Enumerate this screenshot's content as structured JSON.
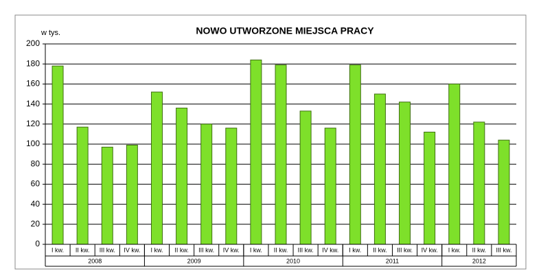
{
  "chart_data": {
    "type": "bar",
    "title": "NOWO UTWORZONE MIEJSCA PRACY",
    "y_label": "w tys.",
    "categories": [
      "I kw.",
      "II kw.",
      "III kw.",
      "IV kw.",
      "I kw.",
      "II kw.",
      "III kw.",
      "IV kw.",
      "I kw.",
      "II kw.",
      "III kw.",
      "IV kw.",
      "I kw.",
      "II kw.",
      "III kw.",
      "IV kw.",
      "I kw.",
      "II kw.",
      "III kw."
    ],
    "groups": [
      {
        "label": "2008",
        "size": 4
      },
      {
        "label": "2009",
        "size": 4
      },
      {
        "label": "2010",
        "size": 4
      },
      {
        "label": "2011",
        "size": 4
      },
      {
        "label": "2012",
        "size": 3
      }
    ],
    "values": [
      178,
      117,
      97,
      99,
      152,
      136,
      120,
      116,
      184,
      179,
      133,
      116,
      179,
      150,
      142,
      112,
      160,
      122,
      104
    ],
    "color": "#7ee02a",
    "ylim": [
      0,
      200
    ],
    "yticks": [
      0,
      20,
      40,
      60,
      80,
      100,
      120,
      140,
      160,
      180,
      200
    ],
    "grid": true
  }
}
